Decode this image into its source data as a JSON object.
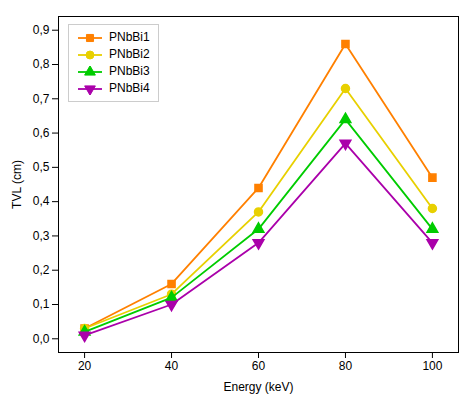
{
  "chart_data": {
    "type": "line",
    "xlabel": "Energy (keV)",
    "ylabel": "TVL (cm)",
    "x": [
      20,
      40,
      60,
      80,
      100
    ],
    "series": [
      {
        "name": "PNbBi1",
        "color": "#FF8000",
        "marker": "square",
        "values": [
          0.03,
          0.16,
          0.44,
          0.86,
          0.47
        ]
      },
      {
        "name": "PNbBi2",
        "color": "#E8D000",
        "marker": "circle",
        "values": [
          0.03,
          0.13,
          0.37,
          0.73,
          0.38
        ]
      },
      {
        "name": "PNbBi3",
        "color": "#00CC00",
        "marker": "triangle_up",
        "values": [
          0.02,
          0.12,
          0.32,
          0.64,
          0.32
        ]
      },
      {
        "name": "PNbBi4",
        "color": "#AA00AA",
        "marker": "triangle_down",
        "values": [
          0.01,
          0.1,
          0.28,
          0.57,
          0.28
        ]
      }
    ],
    "xlim": [
      14,
      106
    ],
    "ylim": [
      -0.04,
      0.94
    ],
    "xticks": [
      20,
      40,
      60,
      80,
      100
    ],
    "yticks": [
      {
        "value": 0.0,
        "label": "0,0"
      },
      {
        "value": 0.1,
        "label": "0,1"
      },
      {
        "value": 0.2,
        "label": "0,2"
      },
      {
        "value": 0.3,
        "label": "0,3"
      },
      {
        "value": 0.4,
        "label": "0,4"
      },
      {
        "value": 0.5,
        "label": "0,5"
      },
      {
        "value": 0.6,
        "label": "0,6"
      },
      {
        "value": 0.7,
        "label": "0,7"
      },
      {
        "value": 0.8,
        "label": "0,8"
      },
      {
        "value": 0.9,
        "label": "0,9"
      }
    ],
    "grid": false,
    "legend": "upper left"
  }
}
